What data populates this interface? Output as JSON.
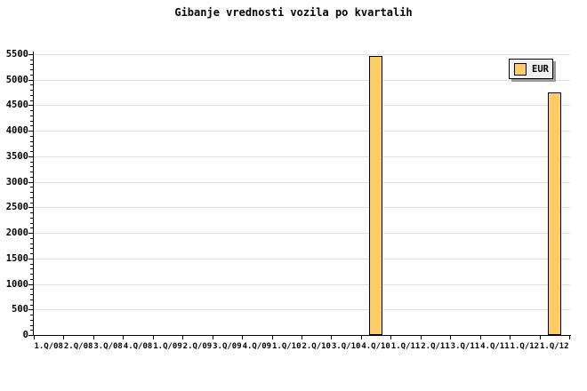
{
  "chart_data": {
    "type": "bar",
    "title": "Gibanje vrednosti vozila po kvartalih",
    "categories": [
      "1.Q/08",
      "2.Q/08",
      "3.Q/08",
      "4.Q/08",
      "1.Q/09",
      "2.Q/09",
      "3.Q/09",
      "4.Q/09",
      "1.Q/10",
      "2.Q/10",
      "3.Q/10",
      "4.Q/10",
      "1.Q/11",
      "2.Q/11",
      "3.Q/11",
      "4.Q/11",
      "1.Q/12",
      "1.Q/12"
    ],
    "series": [
      {
        "name": "EUR",
        "values": [
          null,
          null,
          null,
          null,
          null,
          null,
          null,
          null,
          null,
          null,
          null,
          5460,
          null,
          null,
          null,
          null,
          null,
          4750
        ]
      }
    ],
    "xlabel": "",
    "ylabel": "",
    "ylim": [
      0,
      5500
    ],
    "ytick_major": 500,
    "ytick_minor": 100,
    "grid": "horizontal",
    "legend": {
      "label": "EUR",
      "position": "top-right"
    },
    "colors": {
      "bar_fill": "#FFCC66",
      "bar_border": "#000000",
      "grid": "#E0E0E0",
      "axis": "#000000",
      "legend_bg": "#F0F0F0",
      "legend_shadow": "#999999",
      "background": "#FFFFFF",
      "text": "#000000"
    }
  }
}
